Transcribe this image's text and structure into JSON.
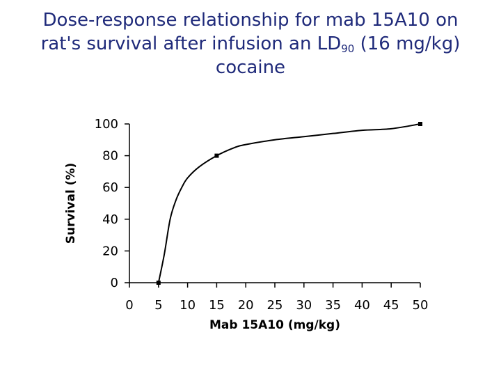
{
  "title": {
    "line1": "Dose-response relationship for mab 15A10 on",
    "line2_pre": "rat's survival after infusion an LD",
    "line2_sub": "90",
    "line2_post": " (16 mg/kg)",
    "line3": "cocaine"
  },
  "chart_data": {
    "type": "line",
    "title": "Dose-response relationship for mab 15A10 on rat's survival after infusion an LD90 (16 mg/kg) cocaine",
    "xlabel": "Mab 15A10 (mg/kg)",
    "ylabel": "Survival (%)",
    "xlim": [
      0,
      50
    ],
    "ylim": [
      0,
      100
    ],
    "x_ticks": [
      0,
      5,
      10,
      15,
      20,
      25,
      30,
      35,
      40,
      45,
      50
    ],
    "y_ticks": [
      0,
      20,
      40,
      60,
      80,
      100
    ],
    "grid": false,
    "legend": "none",
    "color": "#000000",
    "series": [
      {
        "markers": [
          [
            5,
            0
          ],
          [
            15,
            80
          ],
          [
            50,
            100
          ]
        ],
        "curve": [
          [
            5,
            0
          ],
          [
            6,
            18
          ],
          [
            7,
            40
          ],
          [
            8,
            52
          ],
          [
            9,
            60
          ],
          [
            10,
            66
          ],
          [
            12,
            73
          ],
          [
            15,
            80
          ],
          [
            18,
            85
          ],
          [
            20,
            87
          ],
          [
            25,
            90
          ],
          [
            30,
            92
          ],
          [
            35,
            94
          ],
          [
            40,
            96
          ],
          [
            45,
            97
          ],
          [
            50,
            100
          ]
        ]
      }
    ]
  }
}
